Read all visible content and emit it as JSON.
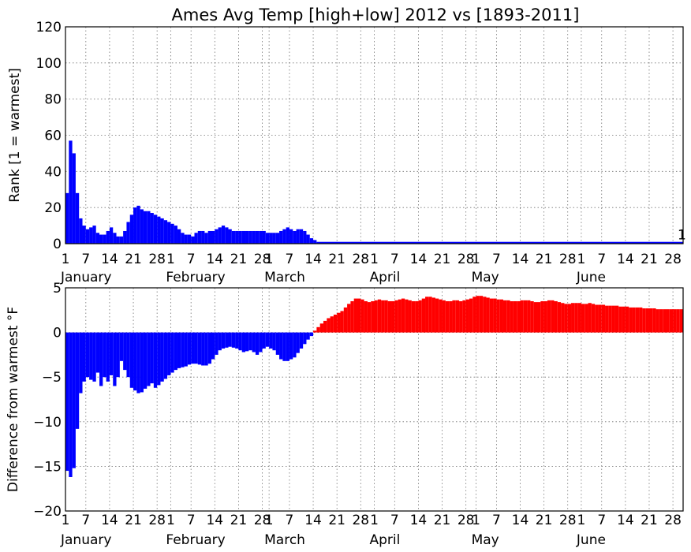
{
  "title": "Ames Avg Temp [high+low] 2012 vs [1893-2011]",
  "chart_data": [
    {
      "type": "bar",
      "panel": "top",
      "ylabel": "Rank [1 = warmest]",
      "ylim": [
        0,
        120
      ],
      "yticks": [
        "0",
        "20",
        "40",
        "60",
        "80",
        "100",
        "120"
      ],
      "xlim_day": [
        1,
        183
      ],
      "day_ticks": [
        "1",
        "7",
        "14",
        "21",
        "28",
        "1",
        "7",
        "14",
        "21",
        "28",
        "1",
        "7",
        "14",
        "21",
        "28",
        "1",
        "7",
        "14",
        "21",
        "28",
        "1",
        "7",
        "14",
        "21",
        "28",
        "1",
        "7",
        "14",
        "21",
        "28"
      ],
      "months": [
        "January",
        "February",
        "March",
        "April",
        "May",
        "June"
      ],
      "grid": true,
      "bar_color": "#0000ff",
      "end_annotation": "1",
      "series": [
        {
          "points": [
            [
              1,
              28
            ],
            [
              2,
              57
            ],
            [
              3,
              50
            ],
            [
              4,
              28
            ],
            [
              5,
              14
            ],
            [
              6,
              10
            ],
            [
              7,
              8
            ],
            [
              8,
              9
            ],
            [
              9,
              10
            ],
            [
              10,
              6
            ],
            [
              11,
              5
            ],
            [
              12,
              5
            ],
            [
              13,
              7
            ],
            [
              14,
              9
            ],
            [
              15,
              6
            ],
            [
              16,
              4
            ],
            [
              17,
              4
            ],
            [
              18,
              7
            ],
            [
              19,
              12
            ],
            [
              20,
              16
            ],
            [
              21,
              20
            ],
            [
              22,
              21
            ],
            [
              23,
              19
            ],
            [
              24,
              18
            ],
            [
              25,
              18
            ],
            [
              26,
              17
            ],
            [
              27,
              16
            ],
            [
              28,
              15
            ],
            [
              29,
              14
            ],
            [
              30,
              13
            ],
            [
              31,
              12
            ],
            [
              32,
              11
            ],
            [
              33,
              10
            ],
            [
              34,
              8
            ],
            [
              35,
              6
            ],
            [
              36,
              5
            ],
            [
              37,
              5
            ],
            [
              38,
              4
            ],
            [
              39,
              6
            ],
            [
              40,
              7
            ],
            [
              41,
              7
            ],
            [
              42,
              6
            ],
            [
              43,
              7
            ],
            [
              44,
              7
            ],
            [
              45,
              8
            ],
            [
              46,
              9
            ],
            [
              47,
              10
            ],
            [
              48,
              9
            ],
            [
              49,
              8
            ],
            [
              50,
              7
            ],
            [
              51,
              7
            ],
            [
              52,
              7
            ],
            [
              53,
              7
            ],
            [
              54,
              7
            ],
            [
              55,
              7
            ],
            [
              56,
              7
            ],
            [
              57,
              7
            ],
            [
              58,
              7
            ],
            [
              59,
              7
            ],
            [
              60,
              6
            ],
            [
              61,
              6
            ],
            [
              62,
              6
            ],
            [
              63,
              6
            ],
            [
              64,
              7
            ],
            [
              65,
              8
            ],
            [
              66,
              9
            ],
            [
              67,
              8
            ],
            [
              68,
              7
            ],
            [
              69,
              8
            ],
            [
              70,
              8
            ],
            [
              71,
              7
            ],
            [
              72,
              5
            ],
            [
              73,
              3
            ],
            [
              74,
              2
            ],
            [
              75,
              1
            ],
            [
              183,
              1
            ]
          ]
        }
      ]
    },
    {
      "type": "bar",
      "panel": "bottom",
      "ylabel": "Difference from warmest °F",
      "ylim": [
        -20,
        5
      ],
      "yticks": [
        "−20",
        "−15",
        "−10",
        "−5",
        "0",
        "5"
      ],
      "xlim_day": [
        1,
        183
      ],
      "day_ticks": [
        "1",
        "7",
        "14",
        "21",
        "28",
        "1",
        "7",
        "14",
        "21",
        "28",
        "1",
        "7",
        "14",
        "21",
        "28",
        "1",
        "7",
        "14",
        "21",
        "28",
        "1",
        "7",
        "14",
        "21",
        "28",
        "1",
        "7",
        "14",
        "21",
        "28"
      ],
      "months": [
        "January",
        "February",
        "March",
        "April",
        "May",
        "June"
      ],
      "grid": true,
      "positive_color": "#ff0000",
      "negative_color": "#0000ff",
      "series": [
        {
          "points": [
            [
              1,
              -15.5
            ],
            [
              2,
              -16.2
            ],
            [
              3,
              -15.2
            ],
            [
              4,
              -10.8
            ],
            [
              5,
              -6.8
            ],
            [
              6,
              -5.5
            ],
            [
              7,
              -5
            ],
            [
              8,
              -5.3
            ],
            [
              9,
              -5.5
            ],
            [
              10,
              -4.5
            ],
            [
              11,
              -6
            ],
            [
              12,
              -5
            ],
            [
              13,
              -5.5
            ],
            [
              14,
              -4.8
            ],
            [
              15,
              -6
            ],
            [
              16,
              -5
            ],
            [
              17,
              -3.2
            ],
            [
              18,
              -4.2
            ],
            [
              19,
              -5
            ],
            [
              20,
              -6.2
            ],
            [
              21,
              -6.5
            ],
            [
              22,
              -6.8
            ],
            [
              23,
              -6.7
            ],
            [
              24,
              -6.3
            ],
            [
              25,
              -6
            ],
            [
              26,
              -5.7
            ],
            [
              27,
              -6.2
            ],
            [
              28,
              -5.9
            ],
            [
              29,
              -5.5
            ],
            [
              30,
              -5.2
            ],
            [
              31,
              -4.8
            ],
            [
              32,
              -4.5
            ],
            [
              33,
              -4.2
            ],
            [
              34,
              -4
            ],
            [
              35,
              -3.9
            ],
            [
              36,
              -3.8
            ],
            [
              37,
              -3.6
            ],
            [
              38,
              -3.5
            ],
            [
              39,
              -3.5
            ],
            [
              40,
              -3.6
            ],
            [
              41,
              -3.7
            ],
            [
              42,
              -3.7
            ],
            [
              43,
              -3.5
            ],
            [
              44,
              -3
            ],
            [
              45,
              -2.5
            ],
            [
              46,
              -2
            ],
            [
              47,
              -1.8
            ],
            [
              48,
              -1.7
            ],
            [
              49,
              -1.6
            ],
            [
              50,
              -1.7
            ],
            [
              51,
              -1.8
            ],
            [
              52,
              -2
            ],
            [
              53,
              -2.2
            ],
            [
              54,
              -2.1
            ],
            [
              55,
              -2
            ],
            [
              56,
              -2.2
            ],
            [
              57,
              -2.5
            ],
            [
              58,
              -2.2
            ],
            [
              59,
              -1.8
            ],
            [
              60,
              -1.6
            ],
            [
              61,
              -1.8
            ],
            [
              62,
              -2
            ],
            [
              63,
              -2.5
            ],
            [
              64,
              -3
            ],
            [
              65,
              -3.2
            ],
            [
              66,
              -3.2
            ],
            [
              67,
              -3
            ],
            [
              68,
              -2.8
            ],
            [
              69,
              -2.3
            ],
            [
              70,
              -1.8
            ],
            [
              71,
              -1.3
            ],
            [
              72,
              -0.8
            ],
            [
              73,
              -0.4
            ],
            [
              74,
              0.2
            ],
            [
              75,
              0.6
            ],
            [
              76,
              1
            ],
            [
              77,
              1.3
            ],
            [
              78,
              1.6
            ],
            [
              79,
              1.8
            ],
            [
              80,
              2
            ],
            [
              81,
              2.2
            ],
            [
              82,
              2.4
            ],
            [
              83,
              2.8
            ],
            [
              84,
              3.2
            ],
            [
              85,
              3.5
            ],
            [
              86,
              3.8
            ],
            [
              87,
              3.8
            ],
            [
              88,
              3.7
            ],
            [
              89,
              3.5
            ],
            [
              90,
              3.4
            ],
            [
              91,
              3.5
            ],
            [
              92,
              3.6
            ],
            [
              93,
              3.7
            ],
            [
              94,
              3.6
            ],
            [
              95,
              3.6
            ],
            [
              96,
              3.5
            ],
            [
              97,
              3.5
            ],
            [
              98,
              3.6
            ],
            [
              99,
              3.7
            ],
            [
              100,
              3.8
            ],
            [
              101,
              3.7
            ],
            [
              102,
              3.6
            ],
            [
              103,
              3.5
            ],
            [
              104,
              3.5
            ],
            [
              105,
              3.6
            ],
            [
              106,
              3.8
            ],
            [
              107,
              4
            ],
            [
              108,
              4
            ],
            [
              109,
              3.9
            ],
            [
              110,
              3.8
            ],
            [
              111,
              3.7
            ],
            [
              112,
              3.6
            ],
            [
              113,
              3.5
            ],
            [
              114,
              3.5
            ],
            [
              115,
              3.6
            ],
            [
              116,
              3.6
            ],
            [
              117,
              3.5
            ],
            [
              118,
              3.6
            ],
            [
              119,
              3.7
            ],
            [
              120,
              3.8
            ],
            [
              121,
              4
            ],
            [
              122,
              4.1
            ],
            [
              123,
              4.1
            ],
            [
              124,
              4
            ],
            [
              125,
              3.9
            ],
            [
              126,
              3.8
            ],
            [
              127,
              3.8
            ],
            [
              128,
              3.7
            ],
            [
              129,
              3.7
            ],
            [
              130,
              3.6
            ],
            [
              131,
              3.6
            ],
            [
              132,
              3.5
            ],
            [
              133,
              3.5
            ],
            [
              134,
              3.5
            ],
            [
              135,
              3.6
            ],
            [
              136,
              3.6
            ],
            [
              137,
              3.6
            ],
            [
              138,
              3.5
            ],
            [
              139,
              3.4
            ],
            [
              140,
              3.4
            ],
            [
              141,
              3.5
            ],
            [
              142,
              3.5
            ],
            [
              143,
              3.6
            ],
            [
              144,
              3.6
            ],
            [
              145,
              3.5
            ],
            [
              146,
              3.4
            ],
            [
              147,
              3.3
            ],
            [
              148,
              3.2
            ],
            [
              149,
              3.2
            ],
            [
              150,
              3.3
            ],
            [
              151,
              3.3
            ],
            [
              152,
              3.3
            ],
            [
              153,
              3.2
            ],
            [
              154,
              3.2
            ],
            [
              155,
              3.3
            ],
            [
              156,
              3.2
            ],
            [
              157,
              3.1
            ],
            [
              158,
              3.1
            ],
            [
              159,
              3.1
            ],
            [
              160,
              3
            ],
            [
              161,
              3
            ],
            [
              162,
              3
            ],
            [
              163,
              3
            ],
            [
              164,
              2.9
            ],
            [
              165,
              2.9
            ],
            [
              166,
              2.9
            ],
            [
              167,
              2.8
            ],
            [
              168,
              2.8
            ],
            [
              169,
              2.8
            ],
            [
              170,
              2.8
            ],
            [
              171,
              2.7
            ],
            [
              172,
              2.7
            ],
            [
              173,
              2.7
            ],
            [
              174,
              2.7
            ],
            [
              175,
              2.6
            ],
            [
              176,
              2.6
            ],
            [
              177,
              2.6
            ],
            [
              178,
              2.6
            ],
            [
              179,
              2.6
            ],
            [
              180,
              2.6
            ],
            [
              181,
              2.6
            ],
            [
              182,
              2.6
            ]
          ]
        }
      ]
    }
  ]
}
